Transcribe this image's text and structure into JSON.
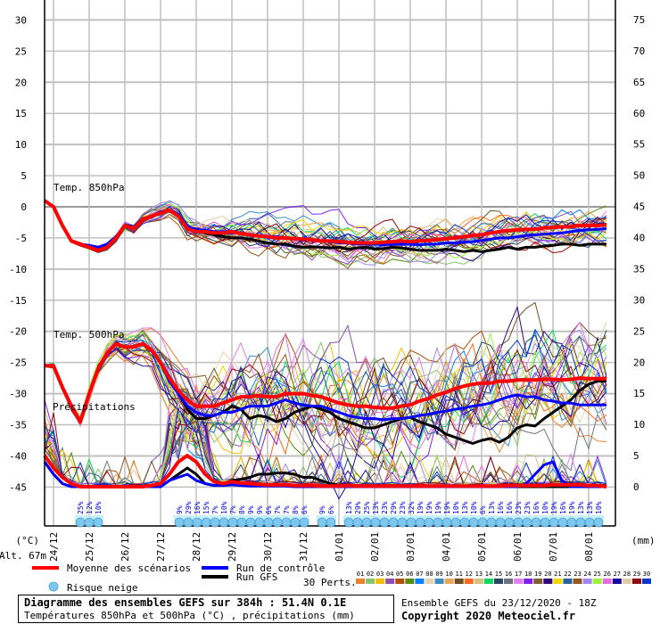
{
  "chart_data": {
    "type": "line",
    "title": "Diagramme des ensembles GEFS sur 384h : 51.4N 0.1E",
    "subtitle": "Températures 850hPa et 500hPa (°C) , précipitations (mm)",
    "run_info": "Ensemble GEFS du 23/12/2020 - 18Z",
    "copyright": "Copyright 2020 Meteociel.fr",
    "altitude_label": "Alt. 67m",
    "ylabel_left": "(°C)",
    "ylabel_right": "(mm)",
    "ylim_left": [
      -45,
      30
    ],
    "ylim_right": [
      0,
      75
    ],
    "left_ticks": [
      30,
      25,
      20,
      15,
      10,
      5,
      0,
      -5,
      -10,
      -15,
      -20,
      -25,
      -30,
      -35,
      -40,
      -45
    ],
    "right_ticks": [
      75,
      70,
      65,
      60,
      55,
      50,
      45,
      40,
      35,
      30,
      25,
      20,
      15,
      10,
      5,
      0
    ],
    "x_ticks": [
      "24/12",
      "25/12",
      "26/12",
      "27/12",
      "28/12",
      "29/12",
      "30/12",
      "31/12",
      "01/01",
      "02/01",
      "03/01",
      "04/01",
      "05/01",
      "06/01",
      "07/01",
      "08/01"
    ],
    "x_step_hours": 6,
    "grid": true,
    "panel_labels": [
      "Temp. 850hPa",
      "Temp. 500hPa",
      "Précipitations"
    ],
    "series": [
      {
        "name": "Moyenne des scénarios (850hPa)",
        "color": "#ff0000",
        "values": [
          1,
          0,
          -3,
          -5.5,
          -6,
          -6.5,
          -7,
          -6.5,
          -5,
          -3,
          -3.5,
          -2,
          -1.5,
          -1,
          -0.5,
          -1.5,
          -3.5,
          -4,
          -4,
          -4.2,
          -4.2,
          -4,
          -4.3,
          -4.5,
          -4.7,
          -4.8,
          -5,
          -5,
          -5.1,
          -5.2,
          -5.3,
          -5.5,
          -5.5,
          -5.6,
          -5.7,
          -5.8,
          -5.8,
          -5.8,
          -5.7,
          -5.6,
          -5.5,
          -5.6,
          -5.5,
          -5.4,
          -5.3,
          -5.1,
          -5,
          -4.8,
          -4.6,
          -4.5,
          -4.2,
          -4,
          -3.8,
          -3.7,
          -3.6,
          -3.6,
          -3.4,
          -3.3,
          -3.2,
          -3.2,
          -3.0,
          -3.0,
          -3.0,
          -2.9
        ]
      },
      {
        "name": "Run de contrôle (850hPa)",
        "color": "#0000ff",
        "values": [
          1,
          0,
          -3,
          -5.5,
          -6,
          -6.2,
          -6.5,
          -6,
          -4.8,
          -3,
          -3.4,
          -2,
          -1.5,
          -0.8,
          -0.5,
          -1.2,
          -3.2,
          -3.6,
          -3.8,
          -4,
          -4,
          -4,
          -4.2,
          -4.5,
          -4.6,
          -4.8,
          -4.8,
          -5,
          -5.2,
          -5.3,
          -5.4,
          -5.5,
          -5.6,
          -5.8,
          -5.8,
          -6,
          -6,
          -6,
          -6.1,
          -6,
          -6,
          -6,
          -6.1,
          -6,
          -6,
          -5.8,
          -5.8,
          -5.7,
          -5.6,
          -5.4,
          -5.2,
          -5.0,
          -5.0,
          -4.8,
          -4.6,
          -4.5,
          -4.4,
          -4.3,
          -4.2,
          -4.0,
          -3.8,
          -3.7,
          -3.6,
          -3.5
        ]
      },
      {
        "name": "Run GFS (850hPa)",
        "color": "#000000",
        "values": [
          1,
          0,
          -3,
          -5.5,
          -6,
          -6.2,
          -6.5,
          -6,
          -4.8,
          -3,
          -3.4,
          -2,
          -1.5,
          -0.8,
          -0.5,
          -1.5,
          -3.5,
          -4,
          -4.2,
          -4.5,
          -4.8,
          -5,
          -5,
          -5.2,
          -5.5,
          -5.8,
          -6,
          -6,
          -6.3,
          -6.5,
          -6.4,
          -6.5,
          -6.6,
          -6.5,
          -6.8,
          -6.6,
          -6.5,
          -6.8,
          -6.7,
          -6.5,
          -6.6,
          -6.8,
          -7,
          -7,
          -7,
          -6.8,
          -7,
          -7.2,
          -7,
          -7.2,
          -7,
          -6.8,
          -6.5,
          -6.8,
          -6.5,
          -6.5,
          -6.3,
          -6.2,
          -6,
          -6,
          -6.2,
          -6,
          -6,
          -6
        ]
      },
      {
        "name": "Moyenne des scénarios (500hPa)",
        "color": "#ff0000",
        "values": [
          -25.5,
          -25.5,
          -29,
          -32,
          -34.5,
          -30,
          -26,
          -23.5,
          -22,
          -22.5,
          -22.5,
          -22,
          -23,
          -25,
          -27.5,
          -29.5,
          -31,
          -32,
          -32,
          -32,
          -31.5,
          -31,
          -30.5,
          -30.5,
          -30.3,
          -30.5,
          -30.5,
          -30,
          -30,
          -30,
          -30.3,
          -30.5,
          -31,
          -31.5,
          -31.8,
          -32,
          -32,
          -32.2,
          -32.3,
          -32.3,
          -32,
          -31.8,
          -31.2,
          -30.8,
          -30.2,
          -29.8,
          -29.2,
          -28.8,
          -28.5,
          -28.3,
          -28.3,
          -28,
          -28,
          -27.8,
          -27.8,
          -27.8,
          -27.7,
          -27.7,
          -27.8,
          -27.7,
          -27.5,
          -27.6,
          -27.6,
          -27.6
        ]
      },
      {
        "name": "Run de contrôle (500hPa)",
        "color": "#0000ff",
        "values": [
          -25.5,
          -25.5,
          -29,
          -32,
          -34.5,
          -30,
          -26,
          -23.5,
          -22,
          -22.5,
          -22.5,
          -22,
          -23,
          -25,
          -28,
          -30,
          -32,
          -33,
          -33.5,
          -33.5,
          -33,
          -33,
          -32.5,
          -32,
          -32,
          -32,
          -31.5,
          -31,
          -31.5,
          -31.8,
          -32,
          -32,
          -32.5,
          -33,
          -33.5,
          -33.8,
          -34,
          -34,
          -34.2,
          -34,
          -34,
          -33.8,
          -33.5,
          -33.3,
          -33,
          -32.8,
          -32.5,
          -32.3,
          -32,
          -31.8,
          -31.5,
          -31,
          -30.5,
          -30.2,
          -30.5,
          -30.5,
          -31,
          -31.2,
          -31.5,
          -31.5,
          -31.8,
          -31.8,
          -31.8,
          -31.8
        ]
      },
      {
        "name": "Run GFS (500hPa)",
        "color": "#000000",
        "values": [
          -25.5,
          -25.5,
          -29,
          -32,
          -34.5,
          -30,
          -26,
          -23.5,
          -22,
          -22.5,
          -22.5,
          -22,
          -23,
          -25,
          -28,
          -30,
          -32.5,
          -34,
          -34,
          -33.5,
          -33,
          -32,
          -32.5,
          -34,
          -33.5,
          -33.8,
          -34.5,
          -34,
          -33,
          -32.5,
          -32,
          -32.5,
          -33,
          -34,
          -34.5,
          -35,
          -35.5,
          -35.5,
          -35,
          -34.5,
          -34,
          -33.8,
          -34.5,
          -35,
          -35.5,
          -36.5,
          -37,
          -37.5,
          -38,
          -37.5,
          -37.2,
          -37.8,
          -37,
          -35.5,
          -35,
          -35.2,
          -34,
          -33,
          -32,
          -31,
          -29.5,
          -28.5,
          -28,
          -28
        ]
      },
      {
        "name": "Moyenne des scénarios (précipitations mm)",
        "color": "#ff0000",
        "values": [
          5,
          3,
          1.5,
          0.5,
          0,
          0,
          0,
          0,
          0,
          0,
          0,
          0,
          0.2,
          0.5,
          2,
          4,
          5,
          4,
          2,
          0.8,
          0.5,
          0.8,
          0.6,
          0.5,
          0.4,
          0.3,
          0.3,
          0.3,
          0.2,
          0.2,
          0.2,
          0.1,
          0.1,
          0.1,
          0.2,
          0.1,
          0.1,
          0.1,
          0.1,
          0.1,
          0.1,
          0.1,
          0.1,
          0.1,
          0.1,
          0.1,
          0.1,
          0.1,
          0.1,
          0.1,
          0.1,
          0.1,
          0.2,
          0.2,
          0.2,
          0.2,
          0.2,
          0.3,
          0.3,
          0.3,
          0.3,
          0.2,
          0.2,
          0
        ]
      },
      {
        "name": "Run de contrôle (précipitations mm)",
        "color": "#0000ff",
        "values": [
          4,
          2,
          0.5,
          0,
          0,
          0,
          0,
          0,
          0,
          0,
          0,
          0,
          0,
          0,
          1,
          1.5,
          2,
          1,
          0.5,
          0.2,
          0.2,
          0.3,
          0.2,
          0.1,
          0.1,
          0.1,
          0.1,
          0.1,
          0,
          0,
          0,
          0,
          0,
          0,
          0,
          0,
          0,
          0,
          0,
          0,
          0,
          0,
          0,
          0,
          0,
          0,
          0,
          0,
          0,
          0,
          0,
          0,
          0,
          0,
          0.5,
          2,
          3.5,
          4,
          1,
          0,
          0,
          0,
          0,
          0
        ]
      },
      {
        "name": "Run GFS (précipitations mm)",
        "color": "#000000",
        "values": [
          4,
          2,
          0.5,
          0,
          0,
          0,
          0,
          0,
          0,
          0,
          0,
          0,
          0,
          0,
          1,
          2,
          3,
          2,
          0.5,
          0.2,
          0.5,
          1,
          1.2,
          1.5,
          2,
          2,
          2.2,
          2.2,
          2,
          1.5,
          1.5,
          1,
          0.5,
          0.2,
          0,
          0,
          0,
          0,
          0,
          0,
          0,
          0,
          0,
          0,
          0,
          0,
          0,
          0,
          0,
          0,
          0,
          0,
          0,
          0,
          0,
          0,
          0,
          0,
          0,
          0,
          0,
          0,
          0,
          0
        ]
      }
    ],
    "snow_risk": [
      {
        "day": "24/12",
        "pct": [
          "25%",
          "12%",
          "10%"
        ]
      },
      {
        "day": "27/12-30/12",
        "pct": [
          "9%",
          "29%",
          "16%",
          "15%",
          "7%",
          "10%",
          "7%",
          "8%",
          "9%",
          "9%",
          "6%",
          "7%",
          "7%",
          "8%",
          "6%"
        ]
      },
      {
        "day": "31/12",
        "pct": [
          "9%",
          "6%"
        ]
      },
      {
        "day": "01/01-08/01",
        "pct": [
          "13%",
          "29%",
          "25%",
          "13%",
          "23%",
          "29%",
          "23%",
          "32%",
          "19%",
          "19%",
          "19%",
          "19%",
          "10%",
          "13%",
          "10%",
          "6%",
          "13%",
          "16%",
          "16%",
          "23%",
          "23%",
          "16%",
          "10%",
          "19%",
          "16%",
          "19%",
          "13%",
          "13%",
          "10%"
        ]
      }
    ]
  },
  "legend": {
    "mean_label": "Moyenne des scénarios",
    "control_label": "Run de contrôle",
    "gfs_label": "Run GFS",
    "snow_label": "Risque neige",
    "perts_label": "30 Perts.",
    "mean_color": "#ff0000",
    "control_color": "#0000ff",
    "gfs_color": "#000000",
    "members": [
      {
        "id": "01",
        "color": "#e8822e"
      },
      {
        "id": "02",
        "color": "#86c46e"
      },
      {
        "id": "03",
        "color": "#f0c000"
      },
      {
        "id": "04",
        "color": "#8c50b0"
      },
      {
        "id": "05",
        "color": "#b0500c"
      },
      {
        "id": "06",
        "color": "#5a8a10"
      },
      {
        "id": "07",
        "color": "#0a80ff"
      },
      {
        "id": "08",
        "color": "#e8d4b0"
      },
      {
        "id": "09",
        "color": "#3c8cc0"
      },
      {
        "id": "10",
        "color": "#e8a858"
      },
      {
        "id": "11",
        "color": "#6a5020"
      },
      {
        "id": "12",
        "color": "#f86a20"
      },
      {
        "id": "13",
        "color": "#d4c080"
      },
      {
        "id": "14",
        "color": "#10d860"
      },
      {
        "id": "15",
        "color": "#284860"
      },
      {
        "id": "16",
        "color": "#6a7480"
      },
      {
        "id": "17",
        "color": "#e080f0"
      },
      {
        "id": "18",
        "color": "#8020f0"
      },
      {
        "id": "19",
        "color": "#806030"
      },
      {
        "id": "20",
        "color": "#300878"
      },
      {
        "id": "21",
        "color": "#f0d800"
      },
      {
        "id": "22",
        "color": "#2860a0"
      },
      {
        "id": "23",
        "color": "#905820"
      },
      {
        "id": "24",
        "color": "#a088f0"
      },
      {
        "id": "25",
        "color": "#a0f040"
      },
      {
        "id": "26",
        "color": "#e070d8"
      },
      {
        "id": "27",
        "color": "#1808a0"
      },
      {
        "id": "28",
        "color": "#e0cca8"
      },
      {
        "id": "29",
        "color": "#900810"
      },
      {
        "id": "30",
        "color": "#0838c8"
      }
    ]
  }
}
